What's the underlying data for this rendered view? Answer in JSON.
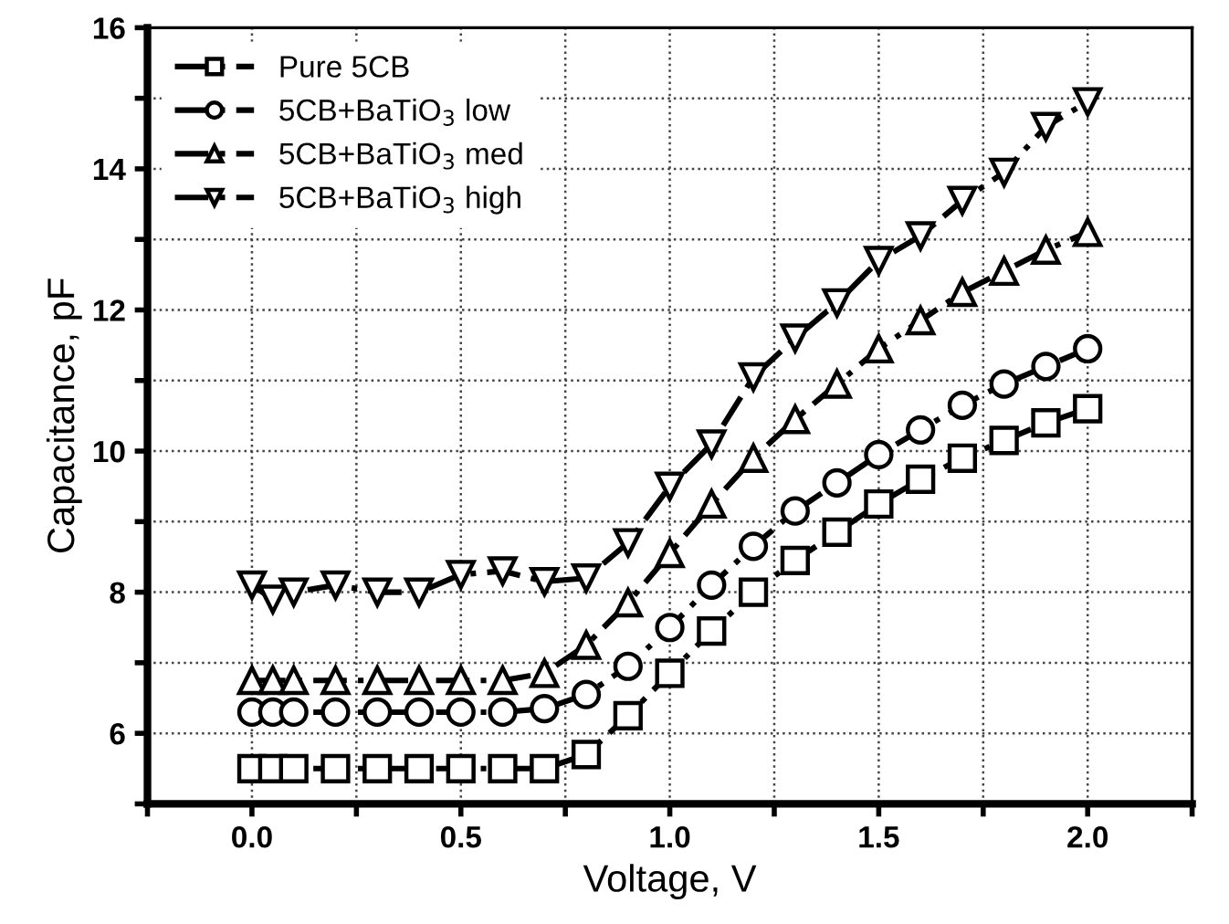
{
  "chart_data": {
    "type": "line",
    "xlabel": "Voltage, V",
    "ylabel": "Capacitance, pF",
    "x": [
      0,
      0.05,
      0.1,
      0.2,
      0.3,
      0.4,
      0.5,
      0.6,
      0.7,
      0.8,
      0.9,
      1.0,
      1.1,
      1.2,
      1.3,
      1.4,
      1.5,
      1.6,
      1.7,
      1.8,
      1.9,
      2.0
    ],
    "series": [
      {
        "name": "Pure 5CB",
        "color": "#000000",
        "marker": "square",
        "values": [
          5.5,
          5.5,
          5.5,
          5.5,
          5.5,
          5.5,
          5.5,
          5.5,
          5.5,
          5.7,
          6.25,
          6.85,
          7.45,
          8.0,
          8.45,
          8.85,
          9.25,
          9.6,
          9.9,
          10.15,
          10.4,
          10.6
        ]
      },
      {
        "name": "5CB+BaTiO$_{3}$ low",
        "color": "#000000",
        "marker": "circle",
        "values": [
          6.3,
          6.3,
          6.3,
          6.3,
          6.3,
          6.3,
          6.3,
          6.3,
          6.35,
          6.55,
          6.95,
          7.5,
          8.1,
          8.65,
          9.15,
          9.55,
          9.95,
          10.3,
          10.65,
          10.95,
          11.2,
          11.45
        ]
      },
      {
        "name": "5CB+BaTiO$_{3}$ med",
        "color": "#000000",
        "marker": "triangle",
        "values": [
          6.75,
          6.75,
          6.75,
          6.75,
          6.75,
          6.75,
          6.75,
          6.75,
          6.85,
          7.25,
          7.85,
          8.55,
          9.25,
          9.9,
          10.45,
          10.95,
          11.45,
          11.85,
          12.25,
          12.55,
          12.85,
          13.1
        ]
      },
      {
        "name": "5CB+BaTiO$_{3}$ high",
        "color": "#000000",
        "marker": "triangle_down",
        "values": [
          8.1,
          7.9,
          8.0,
          8.1,
          8.0,
          8.0,
          8.25,
          8.3,
          8.15,
          8.2,
          8.7,
          9.5,
          10.1,
          11.05,
          11.6,
          12.1,
          12.7,
          13.05,
          13.55,
          13.95,
          14.6,
          14.95
        ]
      }
    ],
    "xlim": [
      -0.25,
      2.25
    ],
    "ylim": [
      5,
      16
    ],
    "xticks": [
      {
        "value": -0.25,
        "label": null
      },
      {
        "value": 0,
        "label": "0.0"
      },
      {
        "value": 0.25,
        "label": null
      },
      0.5,
      {
        "value": 0.75,
        "label": null
      },
      {
        "value": 1,
        "label": "1.0"
      },
      {
        "value": 1.25,
        "label": null
      },
      1.5,
      {
        "value": 1.75,
        "label": null
      },
      {
        "value": 2,
        "label": "2.0"
      },
      {
        "value": 2.25,
        "label": null
      }
    ],
    "yticks": [
      {
        "value": 5,
        "label": null
      },
      6,
      {
        "value": 7,
        "label": null
      },
      8,
      {
        "value": 9,
        "label": null
      },
      10,
      {
        "value": 11,
        "label": null
      },
      12,
      {
        "value": 13,
        "label": null
      },
      14,
      {
        "value": 15,
        "label": null
      },
      16
    ],
    "grid": true,
    "legend": "top left",
    "line_style": "dashed"
  }
}
